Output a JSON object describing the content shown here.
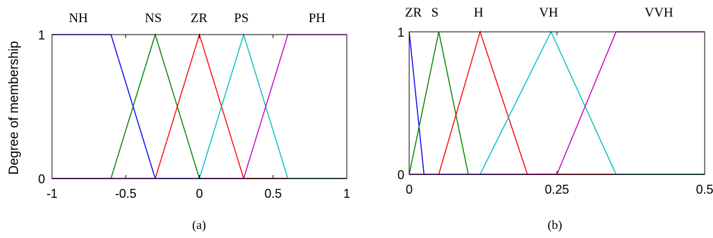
{
  "figure_labels": [
    "(a)",
    "(b)"
  ],
  "chart_data": [
    {
      "type": "line",
      "ylabel": "Degree of membership",
      "xlim": [
        -1,
        1
      ],
      "ylim": [
        0,
        1
      ],
      "x_ticks": [
        {
          "value": -1,
          "label": "-1"
        },
        {
          "value": -0.5,
          "label": "-0.5"
        },
        {
          "value": 0,
          "label": "0"
        },
        {
          "value": 0.5,
          "label": "0.5"
        },
        {
          "value": 1,
          "label": "1"
        }
      ],
      "y_ticks": [
        {
          "value": 0,
          "label": "0"
        },
        {
          "value": 1,
          "label": "1"
        }
      ],
      "grid": false,
      "series": [
        {
          "name": "NH",
          "color": "#0000ff",
          "x": [
            -1,
            -0.6,
            -0.3,
            1
          ],
          "y": [
            1,
            1,
            0,
            0
          ]
        },
        {
          "name": "NS",
          "color": "#008000",
          "x": [
            -1,
            -0.6,
            -0.3,
            0,
            1
          ],
          "y": [
            0,
            0,
            1,
            0,
            0
          ]
        },
        {
          "name": "ZR",
          "color": "#ff0000",
          "x": [
            -1,
            -0.3,
            0,
            0.3,
            1
          ],
          "y": [
            0,
            0,
            1,
            0,
            0
          ]
        },
        {
          "name": "PS",
          "color": "#00bfbf",
          "x": [
            -1,
            0,
            0.3,
            0.6,
            1
          ],
          "y": [
            0,
            0,
            1,
            0,
            0
          ]
        },
        {
          "name": "PH",
          "color": "#bf00bf",
          "x": [
            -1,
            0.3,
            0.6,
            1
          ],
          "y": [
            0,
            0,
            1,
            1
          ]
        }
      ]
    },
    {
      "type": "line",
      "xlim": [
        0,
        0.5
      ],
      "ylim": [
        0,
        1
      ],
      "x_ticks": [
        {
          "value": 0,
          "label": "0"
        },
        {
          "value": 0.25,
          "label": "0.25"
        },
        {
          "value": 0.5,
          "label": "0.5"
        }
      ],
      "y_ticks": [
        {
          "value": 0,
          "label": "0"
        },
        {
          "value": 1,
          "label": "1"
        }
      ],
      "grid": false,
      "series": [
        {
          "name": "ZR",
          "color": "#0000ff",
          "x": [
            0,
            0.025,
            0.5
          ],
          "y": [
            1,
            0,
            0
          ]
        },
        {
          "name": "S",
          "color": "#008000",
          "x": [
            0,
            0.05,
            0.1,
            0.5
          ],
          "y": [
            0,
            1,
            0,
            0
          ]
        },
        {
          "name": "H",
          "color": "#ff0000",
          "x": [
            0,
            0.05,
            0.12,
            0.2,
            0.5
          ],
          "y": [
            0,
            0,
            1,
            0,
            0
          ]
        },
        {
          "name": "VH",
          "color": "#00bfbf",
          "x": [
            0,
            0.12,
            0.24,
            0.35,
            0.5
          ],
          "y": [
            0,
            0,
            1,
            0,
            0
          ]
        },
        {
          "name": "VVH",
          "color": "#bf00bf",
          "x": [
            0,
            0.25,
            0.35,
            0.5
          ],
          "y": [
            0,
            0,
            1,
            1
          ]
        }
      ]
    }
  ]
}
